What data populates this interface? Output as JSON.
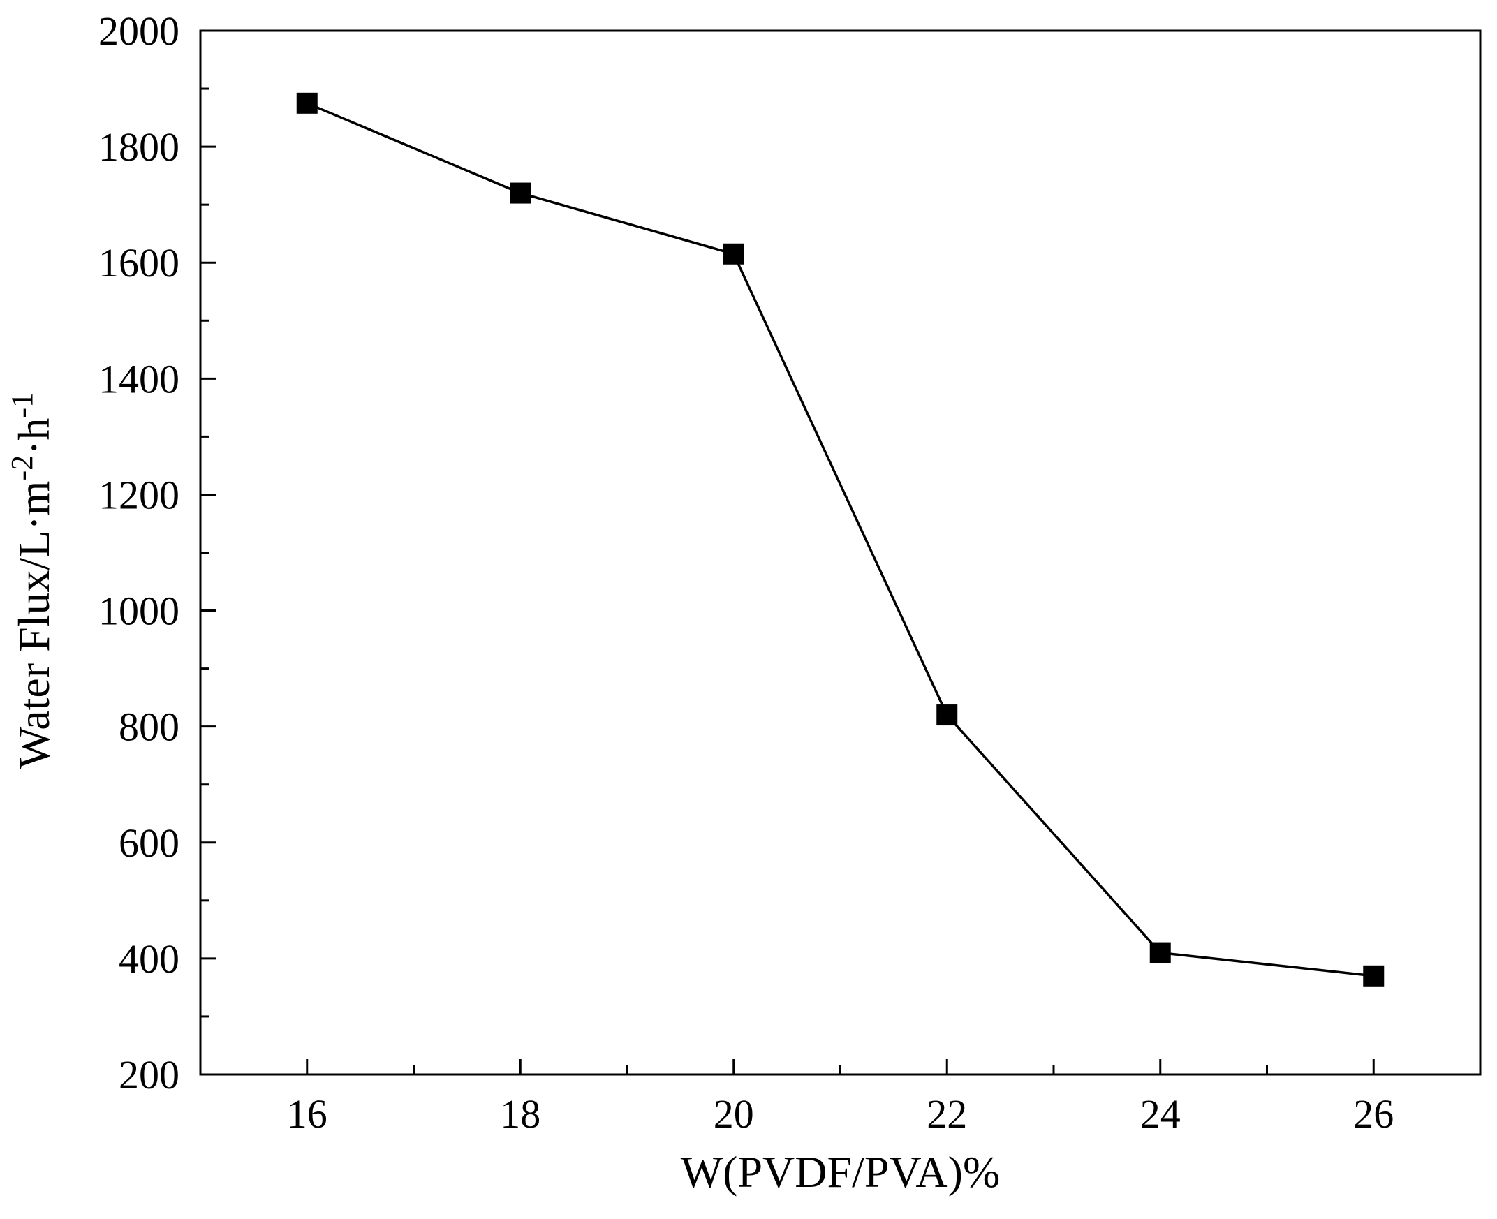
{
  "chart_data": {
    "type": "line",
    "title": "",
    "xlabel": "W(PVDF/PVA)%",
    "ylabel": {
      "base": "Water Flux/L·m",
      "sup1": "-2",
      "middle": "·h",
      "sup2": "-1"
    },
    "xlim": [
      15,
      27
    ],
    "ylim": [
      200,
      2000
    ],
    "x_ticks": [
      16,
      18,
      20,
      22,
      24,
      26
    ],
    "x_minor_ticks": [
      17,
      19,
      21,
      23,
      25
    ],
    "y_ticks": [
      200,
      400,
      600,
      800,
      1000,
      1200,
      1400,
      1600,
      1800,
      2000
    ],
    "y_minor_ticks": [
      300,
      500,
      700,
      900,
      1100,
      1300,
      1500,
      1700,
      1900
    ],
    "grid": false,
    "legend": "none",
    "marker": "square",
    "series": [
      {
        "x": [
          16,
          18,
          20,
          22,
          24,
          26
        ],
        "y": [
          1875,
          1720,
          1615,
          820,
          410,
          370
        ]
      }
    ],
    "colors": {
      "line": "#000000",
      "marker": "#000000",
      "axis": "#000000",
      "background": "#ffffff"
    }
  }
}
